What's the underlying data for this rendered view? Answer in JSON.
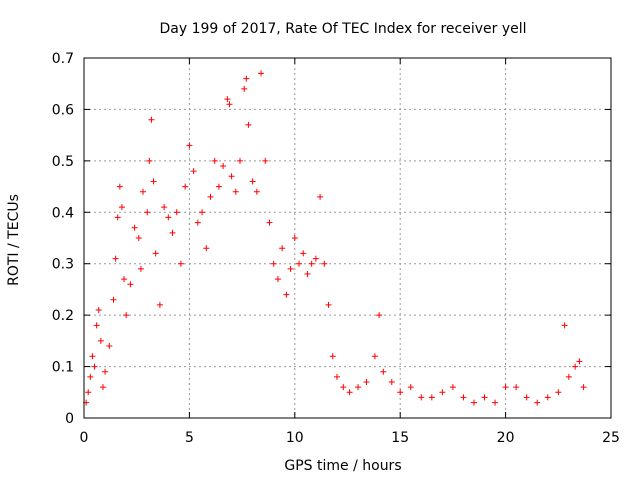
{
  "chart_data": {
    "type": "scatter",
    "title": "Day 199 of 2017, Rate Of TEC Index for receiver yell",
    "xlabel": "GPS time / hours",
    "ylabel": "ROTI / TECUs",
    "xlim": [
      0,
      25
    ],
    "ylim": [
      0,
      0.7
    ],
    "x_ticks": [
      0,
      5,
      10,
      15,
      20,
      25
    ],
    "y_ticks": [
      0,
      0.1,
      0.2,
      0.3,
      0.4,
      0.5,
      0.6,
      0.7
    ],
    "x_tick_labels": [
      "0",
      "5",
      "10",
      "15",
      "20",
      "25"
    ],
    "y_tick_labels": [
      "0",
      "0.1",
      "0.2",
      "0.3",
      "0.4",
      "0.5",
      "0.6",
      "0.7"
    ],
    "grid": true,
    "marker": "+",
    "color": "#ff0000",
    "series": [
      {
        "name": "ROTI",
        "points": [
          [
            0.1,
            0.03
          ],
          [
            0.2,
            0.05
          ],
          [
            0.3,
            0.08
          ],
          [
            0.4,
            0.12
          ],
          [
            0.5,
            0.1
          ],
          [
            0.6,
            0.18
          ],
          [
            0.7,
            0.21
          ],
          [
            0.8,
            0.15
          ],
          [
            0.9,
            0.06
          ],
          [
            1.0,
            0.09
          ],
          [
            1.2,
            0.14
          ],
          [
            1.4,
            0.23
          ],
          [
            1.5,
            0.31
          ],
          [
            1.6,
            0.39
          ],
          [
            1.7,
            0.45
          ],
          [
            1.8,
            0.41
          ],
          [
            1.9,
            0.27
          ],
          [
            2.0,
            0.2
          ],
          [
            2.2,
            0.26
          ],
          [
            2.4,
            0.37
          ],
          [
            2.6,
            0.35
          ],
          [
            2.7,
            0.29
          ],
          [
            2.8,
            0.44
          ],
          [
            3.0,
            0.4
          ],
          [
            3.1,
            0.5
          ],
          [
            3.2,
            0.58
          ],
          [
            3.3,
            0.46
          ],
          [
            3.4,
            0.32
          ],
          [
            3.6,
            0.22
          ],
          [
            3.8,
            0.41
          ],
          [
            4.0,
            0.39
          ],
          [
            4.2,
            0.36
          ],
          [
            4.4,
            0.4
          ],
          [
            4.6,
            0.3
          ],
          [
            4.8,
            0.45
          ],
          [
            5.0,
            0.53
          ],
          [
            5.2,
            0.48
          ],
          [
            5.4,
            0.38
          ],
          [
            5.6,
            0.4
          ],
          [
            5.8,
            0.33
          ],
          [
            6.0,
            0.43
          ],
          [
            6.2,
            0.5
          ],
          [
            6.4,
            0.45
          ],
          [
            6.6,
            0.49
          ],
          [
            6.8,
            0.62
          ],
          [
            6.9,
            0.61
          ],
          [
            7.0,
            0.47
          ],
          [
            7.2,
            0.44
          ],
          [
            7.4,
            0.5
          ],
          [
            7.6,
            0.64
          ],
          [
            7.7,
            0.66
          ],
          [
            7.8,
            0.57
          ],
          [
            8.0,
            0.46
          ],
          [
            8.2,
            0.44
          ],
          [
            8.4,
            0.67
          ],
          [
            8.6,
            0.5
          ],
          [
            8.8,
            0.38
          ],
          [
            9.0,
            0.3
          ],
          [
            9.2,
            0.27
          ],
          [
            9.4,
            0.33
          ],
          [
            9.6,
            0.24
          ],
          [
            9.8,
            0.29
          ],
          [
            10.0,
            0.35
          ],
          [
            10.2,
            0.3
          ],
          [
            10.4,
            0.32
          ],
          [
            10.6,
            0.28
          ],
          [
            10.8,
            0.3
          ],
          [
            11.0,
            0.31
          ],
          [
            11.2,
            0.43
          ],
          [
            11.4,
            0.3
          ],
          [
            11.6,
            0.22
          ],
          [
            11.8,
            0.12
          ],
          [
            12.0,
            0.08
          ],
          [
            12.3,
            0.06
          ],
          [
            12.6,
            0.05
          ],
          [
            13.0,
            0.06
          ],
          [
            13.4,
            0.07
          ],
          [
            13.8,
            0.12
          ],
          [
            14.0,
            0.2
          ],
          [
            14.2,
            0.09
          ],
          [
            14.6,
            0.07
          ],
          [
            15.0,
            0.05
          ],
          [
            15.5,
            0.06
          ],
          [
            16.0,
            0.04
          ],
          [
            16.5,
            0.04
          ],
          [
            17.0,
            0.05
          ],
          [
            17.5,
            0.06
          ],
          [
            18.0,
            0.04
          ],
          [
            18.5,
            0.03
          ],
          [
            19.0,
            0.04
          ],
          [
            19.5,
            0.03
          ],
          [
            20.0,
            0.06
          ],
          [
            20.5,
            0.06
          ],
          [
            21.0,
            0.04
          ],
          [
            21.5,
            0.03
          ],
          [
            22.0,
            0.04
          ],
          [
            22.5,
            0.05
          ],
          [
            22.8,
            0.18
          ],
          [
            23.0,
            0.08
          ],
          [
            23.3,
            0.1
          ],
          [
            23.5,
            0.11
          ],
          [
            23.7,
            0.06
          ]
        ]
      }
    ]
  }
}
